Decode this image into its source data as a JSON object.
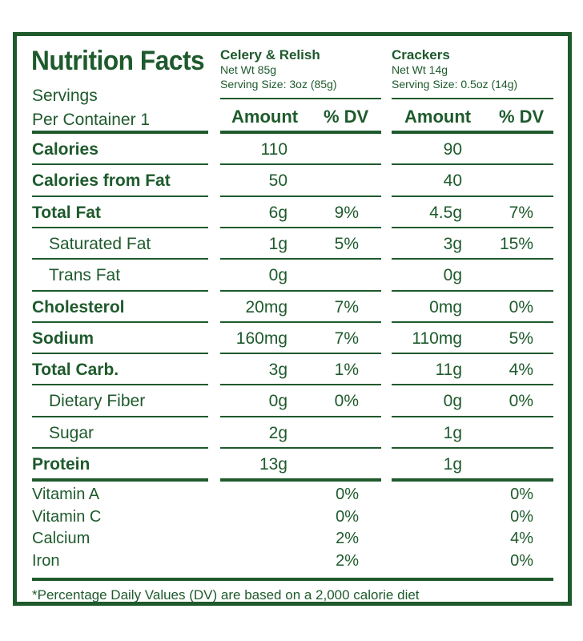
{
  "label": {
    "title": "Nutrition Facts",
    "servings_line1": "Servings",
    "servings_line2": "Per Container 1",
    "footnote": "*Percentage Daily Values (DV) are based on a 2,000 calorie diet",
    "colors": {
      "ink": "#1e5a2c",
      "background": "#ffffff"
    }
  },
  "products": [
    {
      "name": "Celery & Relish",
      "net_wt": "Net Wt 85g",
      "serving_size": "Serving Size: 3oz (85g)",
      "amount_header": "Amount",
      "dv_header": "% DV"
    },
    {
      "name": "Crackers",
      "net_wt": "Net Wt 14g",
      "serving_size": "Serving Size: 0.5oz (14g)",
      "amount_header": "Amount",
      "dv_header": "% DV"
    }
  ],
  "rows": [
    {
      "label": "Calories",
      "p1_amount": "110",
      "p1_dv": "",
      "p2_amount": "90",
      "p2_dv": ""
    },
    {
      "label": "Calories from Fat",
      "p1_amount": "50",
      "p1_dv": "",
      "p2_amount": "40",
      "p2_dv": ""
    },
    {
      "label": "Total Fat",
      "p1_amount": "6g",
      "p1_dv": "9%",
      "p2_amount": "4.5g",
      "p2_dv": "7%"
    },
    {
      "label": "Saturated Fat",
      "p1_amount": "1g",
      "p1_dv": "5%",
      "p2_amount": "3g",
      "p2_dv": "15%"
    },
    {
      "label": "Trans Fat",
      "p1_amount": "0g",
      "p1_dv": "",
      "p2_amount": "0g",
      "p2_dv": ""
    },
    {
      "label": "Cholesterol",
      "p1_amount": "20mg",
      "p1_dv": "7%",
      "p2_amount": "0mg",
      "p2_dv": "0%"
    },
    {
      "label": "Sodium",
      "p1_amount": "160mg",
      "p1_dv": "7%",
      "p2_amount": "110mg",
      "p2_dv": "5%"
    },
    {
      "label": "Total Carb.",
      "p1_amount": "3g",
      "p1_dv": "1%",
      "p2_amount": "11g",
      "p2_dv": "4%"
    },
    {
      "label": "Dietary Fiber",
      "p1_amount": "0g",
      "p1_dv": "0%",
      "p2_amount": "0g",
      "p2_dv": "0%"
    },
    {
      "label": "Sugar",
      "p1_amount": "2g",
      "p1_dv": "",
      "p2_amount": "1g",
      "p2_dv": ""
    },
    {
      "label": "Protein",
      "p1_amount": "13g",
      "p1_dv": "",
      "p2_amount": "1g",
      "p2_dv": ""
    }
  ],
  "vitamins": [
    {
      "label": "Vitamin A",
      "p1_dv": "0%",
      "p2_dv": "0%"
    },
    {
      "label": "Vitamin C",
      "p1_dv": "0%",
      "p2_dv": "0%"
    },
    {
      "label": "Calcium",
      "p1_dv": "2%",
      "p2_dv": "4%"
    },
    {
      "label": "Iron",
      "p1_dv": "2%",
      "p2_dv": "0%"
    }
  ]
}
